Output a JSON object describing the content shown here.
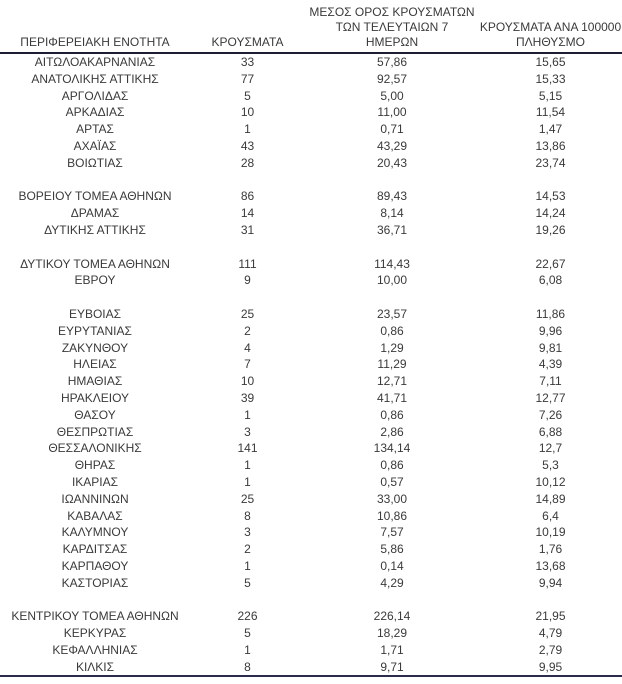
{
  "table": {
    "header": {
      "region": "ΠΕΡΙΦΕΡΕΙΑΚΗ ΕΝΟΤΗΤΑ",
      "cases": "ΚΡΟΥΣΜΑΤΑ",
      "avg7_lines": [
        "ΜΕΣΟΣ ΟΡΟΣ ΚΡΟΥΣΜΑΤΩΝ",
        "ΤΩΝ ΤΕΛΕΥΤΑΙΩΝ 7",
        "ΗΜΕΡΩΝ"
      ],
      "per100k_lines": [
        "ΚΡΟΥΣΜΑΤΑ ΑΝΑ 100000",
        "ΠΛΗΘΥΣΜΟ"
      ]
    },
    "groups": [
      {
        "rows": [
          [
            "ΑΙΤΩΛΟΑΚΑΡΝΑΝΙΑΣ",
            "33",
            "57,86",
            "15,65"
          ],
          [
            "ΑΝΑΤΟΛΙΚΗΣ ΑΤΤΙΚΗΣ",
            "77",
            "92,57",
            "15,33"
          ],
          [
            "ΑΡΓΟΛΙΔΑΣ",
            "5",
            "5,00",
            "5,15"
          ],
          [
            "ΑΡΚΑΔΙΑΣ",
            "10",
            "11,00",
            "11,54"
          ],
          [
            "ΑΡΤΑΣ",
            "1",
            "0,71",
            "1,47"
          ],
          [
            "ΑΧΑΪΑΣ",
            "43",
            "43,29",
            "13,86"
          ],
          [
            "ΒΟΙΩΤΙΑΣ",
            "28",
            "20,43",
            "23,74"
          ]
        ]
      },
      {
        "rows": [
          [
            "ΒΟΡΕΙΟΥ ΤΟΜΕΑ ΑΘΗΝΩΝ",
            "86",
            "89,43",
            "14,53"
          ],
          [
            "ΔΡΑΜΑΣ",
            "14",
            "8,14",
            "14,24"
          ],
          [
            "ΔΥΤΙΚΗΣ ΑΤΤΙΚΗΣ",
            "31",
            "36,71",
            "19,26"
          ]
        ]
      },
      {
        "rows": [
          [
            "ΔΥΤΙΚΟΥ ΤΟΜΕΑ ΑΘΗΝΩΝ",
            "111",
            "114,43",
            "22,67"
          ],
          [
            "ΕΒΡΟΥ",
            "9",
            "10,00",
            "6,08"
          ]
        ]
      },
      {
        "rows": [
          [
            "ΕΥΒΟΙΑΣ",
            "25",
            "23,57",
            "11,86"
          ],
          [
            "ΕΥΡΥΤΑΝΙΑΣ",
            "2",
            "0,86",
            "9,96"
          ],
          [
            "ΖΑΚΥΝΘΟΥ",
            "4",
            "1,29",
            "9,81"
          ],
          [
            "ΗΛΕΙΑΣ",
            "7",
            "11,29",
            "4,39"
          ],
          [
            "ΗΜΑΘΙΑΣ",
            "10",
            "12,71",
            "7,11"
          ],
          [
            "ΗΡΑΚΛΕΙΟΥ",
            "39",
            "41,71",
            "12,77"
          ],
          [
            "ΘΑΣΟΥ",
            "1",
            "0,86",
            "7,26"
          ],
          [
            "ΘΕΣΠΡΩΤΙΑΣ",
            "3",
            "2,86",
            "6,88"
          ],
          [
            "ΘΕΣΣΑΛΟΝΙΚΗΣ",
            "141",
            "134,14",
            "12,7"
          ],
          [
            "ΘΗΡΑΣ",
            "1",
            "0,86",
            "5,3"
          ],
          [
            "ΙΚΑΡΙΑΣ",
            "1",
            "0,57",
            "10,12"
          ],
          [
            "ΙΩΑΝΝΙΝΩΝ",
            "25",
            "33,00",
            "14,89"
          ],
          [
            "ΚΑΒΑΛΑΣ",
            "8",
            "10,86",
            "6,4"
          ],
          [
            "ΚΑΛΥΜΝΟΥ",
            "3",
            "7,57",
            "10,19"
          ],
          [
            "ΚΑΡΔΙΤΣΑΣ",
            "2",
            "5,86",
            "1,76"
          ],
          [
            "ΚΑΡΠΑΘΟΥ",
            "1",
            "0,14",
            "13,68"
          ],
          [
            "ΚΑΣΤΟΡΙΑΣ",
            "5",
            "4,29",
            "9,94"
          ]
        ]
      },
      {
        "rows": [
          [
            "ΚΕΝΤΡΙΚΟΥ ΤΟΜΕΑ ΑΘΗΝΩΝ",
            "226",
            "226,14",
            "21,95"
          ],
          [
            "ΚΕΡΚΥΡΑΣ",
            "5",
            "18,29",
            "4,79"
          ],
          [
            "ΚΕΦΑΛΛΗΝΙΑΣ",
            "1",
            "1,71",
            "2,79"
          ],
          [
            "ΚΙΛΚΙΣ",
            "8",
            "9,71",
            "9,95"
          ]
        ]
      }
    ]
  }
}
